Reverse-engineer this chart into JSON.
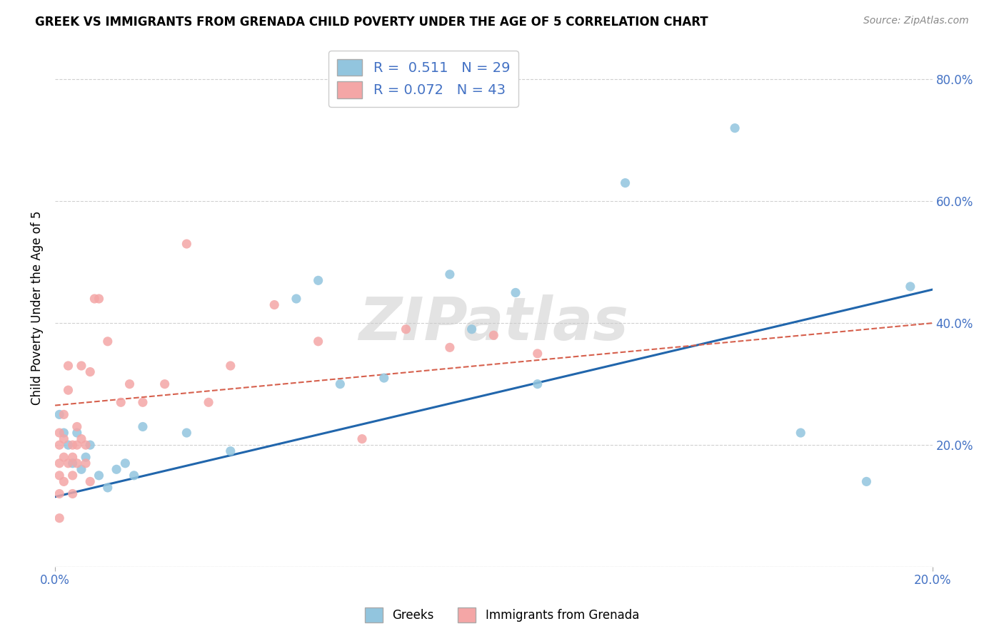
{
  "title": "GREEK VS IMMIGRANTS FROM GRENADA CHILD POVERTY UNDER THE AGE OF 5 CORRELATION CHART",
  "source": "Source: ZipAtlas.com",
  "ylabel": "Child Poverty Under the Age of 5",
  "xlim": [
    0.0,
    0.2
  ],
  "ylim": [
    0.0,
    0.85
  ],
  "y_ticks": [
    0.0,
    0.2,
    0.4,
    0.6,
    0.8
  ],
  "y_tick_labels_right": [
    "",
    "20.0%",
    "40.0%",
    "60.0%",
    "80.0%"
  ],
  "x_ticks": [
    0.0,
    0.2
  ],
  "x_tick_labels": [
    "0.0%",
    "20.0%"
  ],
  "greek_color": "#92c5de",
  "greek_line_color": "#2166ac",
  "grenada_color": "#f4a6a6",
  "grenada_line_color": "#d6604d",
  "tick_color": "#4472c4",
  "legend_R1": "0.511",
  "legend_N1": "29",
  "legend_R2": "0.072",
  "legend_N2": "43",
  "watermark": "ZIPatlas",
  "greek_x": [
    0.001,
    0.002,
    0.003,
    0.004,
    0.005,
    0.006,
    0.007,
    0.008,
    0.01,
    0.012,
    0.014,
    0.016,
    0.018,
    0.02,
    0.03,
    0.04,
    0.055,
    0.06,
    0.065,
    0.075,
    0.09,
    0.095,
    0.105,
    0.11,
    0.13,
    0.155,
    0.17,
    0.185,
    0.195
  ],
  "greek_y": [
    0.25,
    0.22,
    0.2,
    0.17,
    0.22,
    0.16,
    0.18,
    0.2,
    0.15,
    0.13,
    0.16,
    0.17,
    0.15,
    0.23,
    0.22,
    0.19,
    0.44,
    0.47,
    0.3,
    0.31,
    0.48,
    0.39,
    0.45,
    0.3,
    0.63,
    0.72,
    0.22,
    0.14,
    0.46
  ],
  "grenada_x": [
    0.001,
    0.001,
    0.001,
    0.001,
    0.001,
    0.001,
    0.002,
    0.002,
    0.002,
    0.002,
    0.003,
    0.003,
    0.003,
    0.004,
    0.004,
    0.004,
    0.004,
    0.005,
    0.005,
    0.005,
    0.006,
    0.006,
    0.007,
    0.007,
    0.008,
    0.008,
    0.009,
    0.01,
    0.012,
    0.015,
    0.017,
    0.02,
    0.025,
    0.03,
    0.035,
    0.04,
    0.05,
    0.06,
    0.07,
    0.08,
    0.09,
    0.1,
    0.11
  ],
  "grenada_y": [
    0.22,
    0.2,
    0.17,
    0.15,
    0.12,
    0.08,
    0.25,
    0.21,
    0.18,
    0.14,
    0.33,
    0.29,
    0.17,
    0.2,
    0.18,
    0.15,
    0.12,
    0.23,
    0.2,
    0.17,
    0.33,
    0.21,
    0.2,
    0.17,
    0.32,
    0.14,
    0.44,
    0.44,
    0.37,
    0.27,
    0.3,
    0.27,
    0.3,
    0.53,
    0.27,
    0.33,
    0.43,
    0.37,
    0.21,
    0.39,
    0.36,
    0.38,
    0.35
  ],
  "greek_line_x": [
    0.0,
    0.2
  ],
  "greek_line_y": [
    0.115,
    0.455
  ],
  "grenada_line_x": [
    0.0,
    0.2
  ],
  "grenada_line_y": [
    0.265,
    0.4
  ]
}
